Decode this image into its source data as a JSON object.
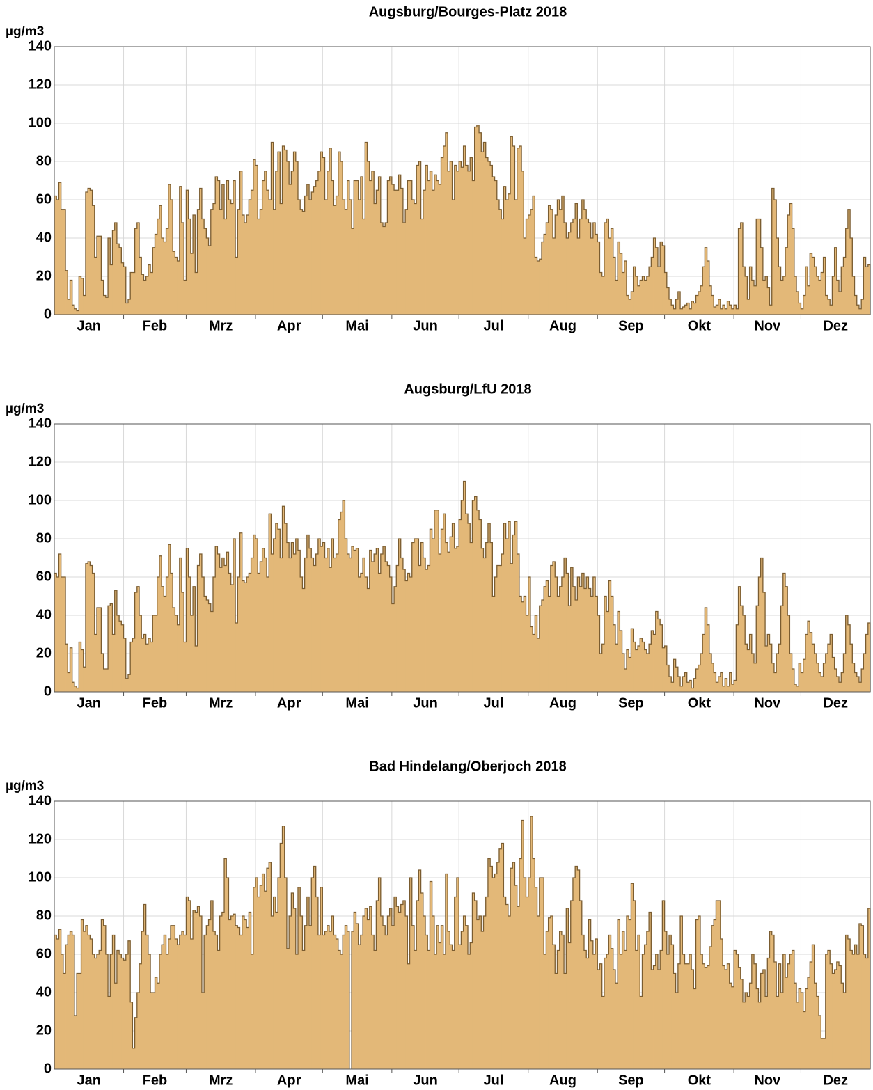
{
  "chart_data": [
    {
      "type": "step",
      "title": "Augsburg/Bourges-Platz 2018",
      "y_label": "µg/m3",
      "categories": [
        "Jan",
        "Feb",
        "Mrz",
        "Apr",
        "Mai",
        "Jun",
        "Jul",
        "Aug",
        "Sep",
        "Okt",
        "Nov",
        "Dez"
      ],
      "values": [
        [
          62,
          60,
          69,
          55,
          55,
          23,
          8,
          18,
          5,
          3,
          2,
          20,
          19,
          10,
          64,
          66,
          65,
          57,
          30,
          41,
          41,
          18,
          10,
          9,
          40,
          26,
          44,
          48,
          37,
          35,
          27
        ],
        [
          25,
          6,
          8,
          22,
          22,
          45,
          48,
          30,
          21,
          18,
          20,
          26,
          22,
          35,
          42,
          50,
          57,
          40,
          38,
          45,
          68,
          60,
          33,
          30,
          28,
          67,
          48,
          18
        ],
        [
          65,
          50,
          32,
          52,
          22,
          55,
          66,
          50,
          45,
          40,
          36,
          55,
          58,
          72,
          70,
          55,
          68,
          50,
          70,
          60,
          58,
          70,
          30,
          55,
          75,
          52,
          48,
          52,
          60,
          65,
          81
        ],
        [
          78,
          50,
          55,
          70,
          75,
          65,
          60,
          90,
          55,
          75,
          85,
          58,
          88,
          86,
          80,
          68,
          75,
          85,
          80,
          60,
          55,
          54,
          62,
          68,
          60,
          64,
          67,
          70,
          75,
          85
        ],
        [
          82,
          60,
          75,
          87,
          70,
          57,
          62,
          85,
          80,
          60,
          55,
          70,
          60,
          45,
          70,
          70,
          60,
          72,
          50,
          90,
          80,
          70,
          75,
          58,
          65,
          72,
          48,
          46,
          48,
          70,
          72
        ],
        [
          68,
          65,
          65,
          73,
          66,
          48,
          55,
          70,
          70,
          60,
          58,
          78,
          80,
          50,
          65,
          78,
          70,
          75,
          65,
          73,
          70,
          68,
          82,
          88,
          95,
          75,
          80,
          60,
          78,
          75
        ],
        [
          80,
          77,
          88,
          78,
          75,
          82,
          70,
          98,
          99,
          95,
          85,
          90,
          82,
          80,
          78,
          72,
          70,
          60,
          55,
          50,
          67,
          60,
          63,
          93,
          88,
          60,
          87,
          88,
          75,
          40,
          50
        ],
        [
          52,
          55,
          62,
          30,
          28,
          29,
          38,
          42,
          48,
          57,
          55,
          40,
          52,
          60,
          55,
          62,
          48,
          40,
          43,
          48,
          50,
          58,
          40,
          50,
          60,
          55,
          50,
          48,
          40,
          48,
          42
        ],
        [
          38,
          22,
          20,
          48,
          50,
          40,
          45,
          30,
          18,
          38,
          32,
          22,
          28,
          10,
          8,
          12,
          25,
          20,
          15,
          18,
          20,
          18,
          20,
          25,
          30,
          40,
          35,
          25,
          38,
          36
        ],
        [
          22,
          14,
          8,
          5,
          3,
          8,
          12,
          3,
          4,
          5,
          6,
          3,
          7,
          6,
          10,
          12,
          15,
          25,
          35,
          28,
          15,
          10,
          4,
          5,
          8,
          3,
          5,
          3,
          7,
          5,
          3
        ],
        [
          5,
          3,
          45,
          48,
          25,
          20,
          8,
          25,
          18,
          15,
          50,
          50,
          35,
          18,
          20,
          14,
          5,
          66,
          60,
          40,
          25,
          18,
          20,
          35,
          52,
          58,
          45,
          20,
          12,
          6
        ],
        [
          3,
          10,
          25,
          15,
          32,
          30,
          25,
          20,
          18,
          22,
          30,
          10,
          8,
          5,
          20,
          35,
          18,
          12,
          25,
          30,
          45,
          55,
          40,
          20,
          10,
          5,
          3,
          8,
          30,
          25,
          26
        ]
      ],
      "color": "#e3b878",
      "line_color": "#7a5c30",
      "ylim": [
        0,
        140
      ],
      "yticks": [
        0,
        20,
        40,
        60,
        80,
        100,
        120,
        140
      ],
      "grid": true
    },
    {
      "type": "step",
      "title": "Augsburg/LfU 2018",
      "y_label": "µg/m3",
      "categories": [
        "Jan",
        "Feb",
        "Mrz",
        "Apr",
        "Mai",
        "Jun",
        "Jul",
        "Aug",
        "Sep",
        "Okt",
        "Nov",
        "Dez"
      ],
      "values": [
        [
          62,
          60,
          72,
          60,
          60,
          25,
          10,
          23,
          5,
          3,
          2,
          26,
          22,
          13,
          67,
          68,
          66,
          62,
          30,
          44,
          44,
          20,
          12,
          12,
          45,
          46,
          30,
          53,
          40,
          37,
          35
        ],
        [
          28,
          7,
          9,
          26,
          28,
          52,
          55,
          40,
          28,
          30,
          25,
          28,
          26,
          40,
          40,
          60,
          71,
          55,
          50,
          60,
          77,
          62,
          44,
          40,
          35,
          70,
          52,
          26
        ],
        [
          75,
          60,
          40,
          55,
          24,
          66,
          72,
          60,
          50,
          48,
          46,
          42,
          60,
          76,
          72,
          65,
          70,
          66,
          73,
          62,
          56,
          80,
          36,
          60,
          83,
          58,
          57,
          60,
          62,
          70,
          82
        ],
        [
          80,
          62,
          68,
          75,
          70,
          60,
          93,
          72,
          80,
          88,
          85,
          70,
          97,
          88,
          78,
          70,
          78,
          72,
          80,
          74,
          60,
          54,
          70,
          82,
          75,
          70,
          66,
          72,
          80,
          76
        ],
        [
          78,
          70,
          75,
          65,
          80,
          70,
          72,
          90,
          94,
          100,
          80,
          72,
          70,
          76,
          74,
          75,
          60,
          62,
          70,
          60,
          54,
          74,
          68,
          72,
          75,
          62,
          72,
          76,
          68,
          66,
          60
        ],
        [
          46,
          55,
          66,
          80,
          70,
          64,
          58,
          62,
          60,
          78,
          80,
          80,
          66,
          78,
          70,
          64,
          66,
          85,
          80,
          95,
          95,
          72,
          85,
          93,
          78,
          73,
          81,
          88,
          75,
          76
        ],
        [
          90,
          100,
          110,
          93,
          88,
          78,
          100,
          102,
          95,
          90,
          75,
          70,
          78,
          88,
          78,
          50,
          60,
          66,
          66,
          72,
          88,
          80,
          89,
          67,
          82,
          89,
          72,
          50,
          47,
          50,
          40
        ],
        [
          60,
          34,
          30,
          40,
          28,
          45,
          48,
          55,
          58,
          50,
          66,
          68,
          60,
          50,
          55,
          60,
          70,
          62,
          45,
          65,
          55,
          48,
          60,
          55,
          62,
          54,
          60,
          54,
          50,
          60,
          50
        ],
        [
          40,
          20,
          25,
          50,
          42,
          58,
          50,
          35,
          25,
          42,
          32,
          20,
          12,
          22,
          18,
          33,
          26,
          22,
          24,
          28,
          26,
          22,
          20,
          25,
          32,
          30,
          42,
          38,
          35,
          23
        ],
        [
          24,
          14,
          8,
          5,
          17,
          13,
          8,
          3,
          8,
          10,
          5,
          6,
          2,
          7,
          12,
          14,
          20,
          30,
          44,
          35,
          20,
          15,
          10,
          5,
          8,
          10,
          3,
          7,
          3,
          10,
          4
        ],
        [
          6,
          35,
          55,
          45,
          40,
          25,
          22,
          30,
          20,
          15,
          45,
          60,
          70,
          52,
          24,
          30,
          25,
          15,
          10,
          20,
          25,
          45,
          62,
          55,
          40,
          20,
          12,
          4,
          3,
          15
        ],
        [
          10,
          17,
          30,
          37,
          31,
          25,
          20,
          15,
          10,
          8,
          15,
          20,
          25,
          30,
          18,
          12,
          8,
          5,
          10,
          20,
          40,
          35,
          25,
          15,
          10,
          8,
          5,
          12,
          20,
          30,
          36
        ]
      ],
      "color": "#e3b878",
      "line_color": "#7a5c30",
      "ylim": [
        0,
        140
      ],
      "yticks": [
        0,
        20,
        40,
        60,
        80,
        100,
        120,
        140
      ],
      "grid": true
    },
    {
      "type": "step",
      "title": "Bad Hindelang/Oberjoch 2018",
      "y_label": "µg/m3",
      "categories": [
        "Jan",
        "Feb",
        "Mrz",
        "Apr",
        "Mai",
        "Jun",
        "Jul",
        "Aug",
        "Sep",
        "Okt",
        "Nov",
        "Dez"
      ],
      "values": [
        [
          70,
          68,
          73,
          60,
          50,
          65,
          70,
          72,
          70,
          28,
          50,
          50,
          78,
          72,
          75,
          70,
          68,
          60,
          58,
          60,
          62,
          78,
          75,
          60,
          38,
          60,
          70,
          45,
          62,
          60,
          58
        ],
        [
          57,
          60,
          67,
          35,
          11,
          27,
          40,
          55,
          72,
          86,
          70,
          60,
          40,
          40,
          48,
          45,
          60,
          65,
          70,
          60,
          68,
          75,
          75,
          68,
          65,
          70,
          72,
          70
        ],
        [
          90,
          88,
          68,
          83,
          82,
          85,
          80,
          40,
          70,
          75,
          78,
          88,
          72,
          70,
          62,
          80,
          82,
          110,
          100,
          78,
          80,
          81,
          75,
          74,
          70,
          80,
          78,
          74,
          82,
          60,
          95
        ],
        [
          100,
          90,
          96,
          102,
          93,
          105,
          108,
          80,
          90,
          82,
          100,
          118,
          127,
          100,
          63,
          80,
          92,
          84,
          60,
          95,
          80,
          62,
          75,
          90,
          75,
          100,
          106,
          90,
          70,
          95
        ],
        [
          70,
          72,
          75,
          72,
          80,
          70,
          68,
          62,
          60,
          70,
          75,
          72,
          null,
          72,
          82,
          76,
          65,
          70,
          80,
          84,
          78,
          85,
          70,
          62,
          88,
          100,
          80,
          75,
          70,
          80,
          84
        ],
        [
          75,
          90,
          85,
          82,
          86,
          88,
          80,
          55,
          100,
          75,
          62,
          88,
          104,
          92,
          80,
          70,
          62,
          98,
          80,
          60,
          75,
          66,
          75,
          60,
          102,
          72,
          65,
          62,
          90,
          100
        ],
        [
          65,
          72,
          80,
          75,
          60,
          66,
          92,
          88,
          78,
          80,
          72,
          80,
          90,
          110,
          106,
          100,
          102,
          108,
          115,
          118,
          90,
          86,
          80,
          105,
          108,
          96,
          85,
          110,
          130,
          100,
          90
        ],
        [
          100,
          132,
          110,
          95,
          80,
          100,
          100,
          60,
          72,
          79,
          80,
          65,
          50,
          62,
          72,
          70,
          50,
          84,
          66,
          88,
          100,
          106,
          104,
          88,
          70,
          62,
          58,
          78,
          67,
          60,
          68
        ],
        [
          52,
          55,
          38,
          58,
          60,
          70,
          63,
          52,
          45,
          78,
          60,
          72,
          62,
          80,
          78,
          97,
          88,
          62,
          70,
          38,
          60,
          65,
          72,
          82,
          52,
          54,
          60,
          52,
          62,
          88
        ],
        [
          72,
          60,
          70,
          65,
          50,
          40,
          55,
          80,
          60,
          55,
          55,
          60,
          52,
          42,
          78,
          80,
          60,
          55,
          53,
          54,
          64,
          75,
          78,
          88,
          88,
          68,
          54,
          52,
          55,
          45,
          43
        ],
        [
          62,
          60,
          53,
          47,
          35,
          40,
          38,
          45,
          60,
          55,
          42,
          35,
          50,
          52,
          38,
          58,
          72,
          70,
          56,
          38,
          55,
          40,
          60,
          48,
          55,
          60,
          62,
          45,
          35,
          42
        ],
        [
          40,
          30,
          42,
          48,
          56,
          65,
          45,
          38,
          28,
          16,
          16,
          60,
          62,
          55,
          50,
          52,
          56,
          54,
          45,
          40,
          70,
          68,
          62,
          60,
          65,
          60,
          76,
          75,
          60,
          58,
          84
        ]
      ],
      "color": "#e3b878",
      "line_color": "#7a5c30",
      "ylim": [
        0,
        140
      ],
      "yticks": [
        0,
        20,
        40,
        60,
        80,
        100,
        120,
        140
      ],
      "grid": true
    }
  ]
}
